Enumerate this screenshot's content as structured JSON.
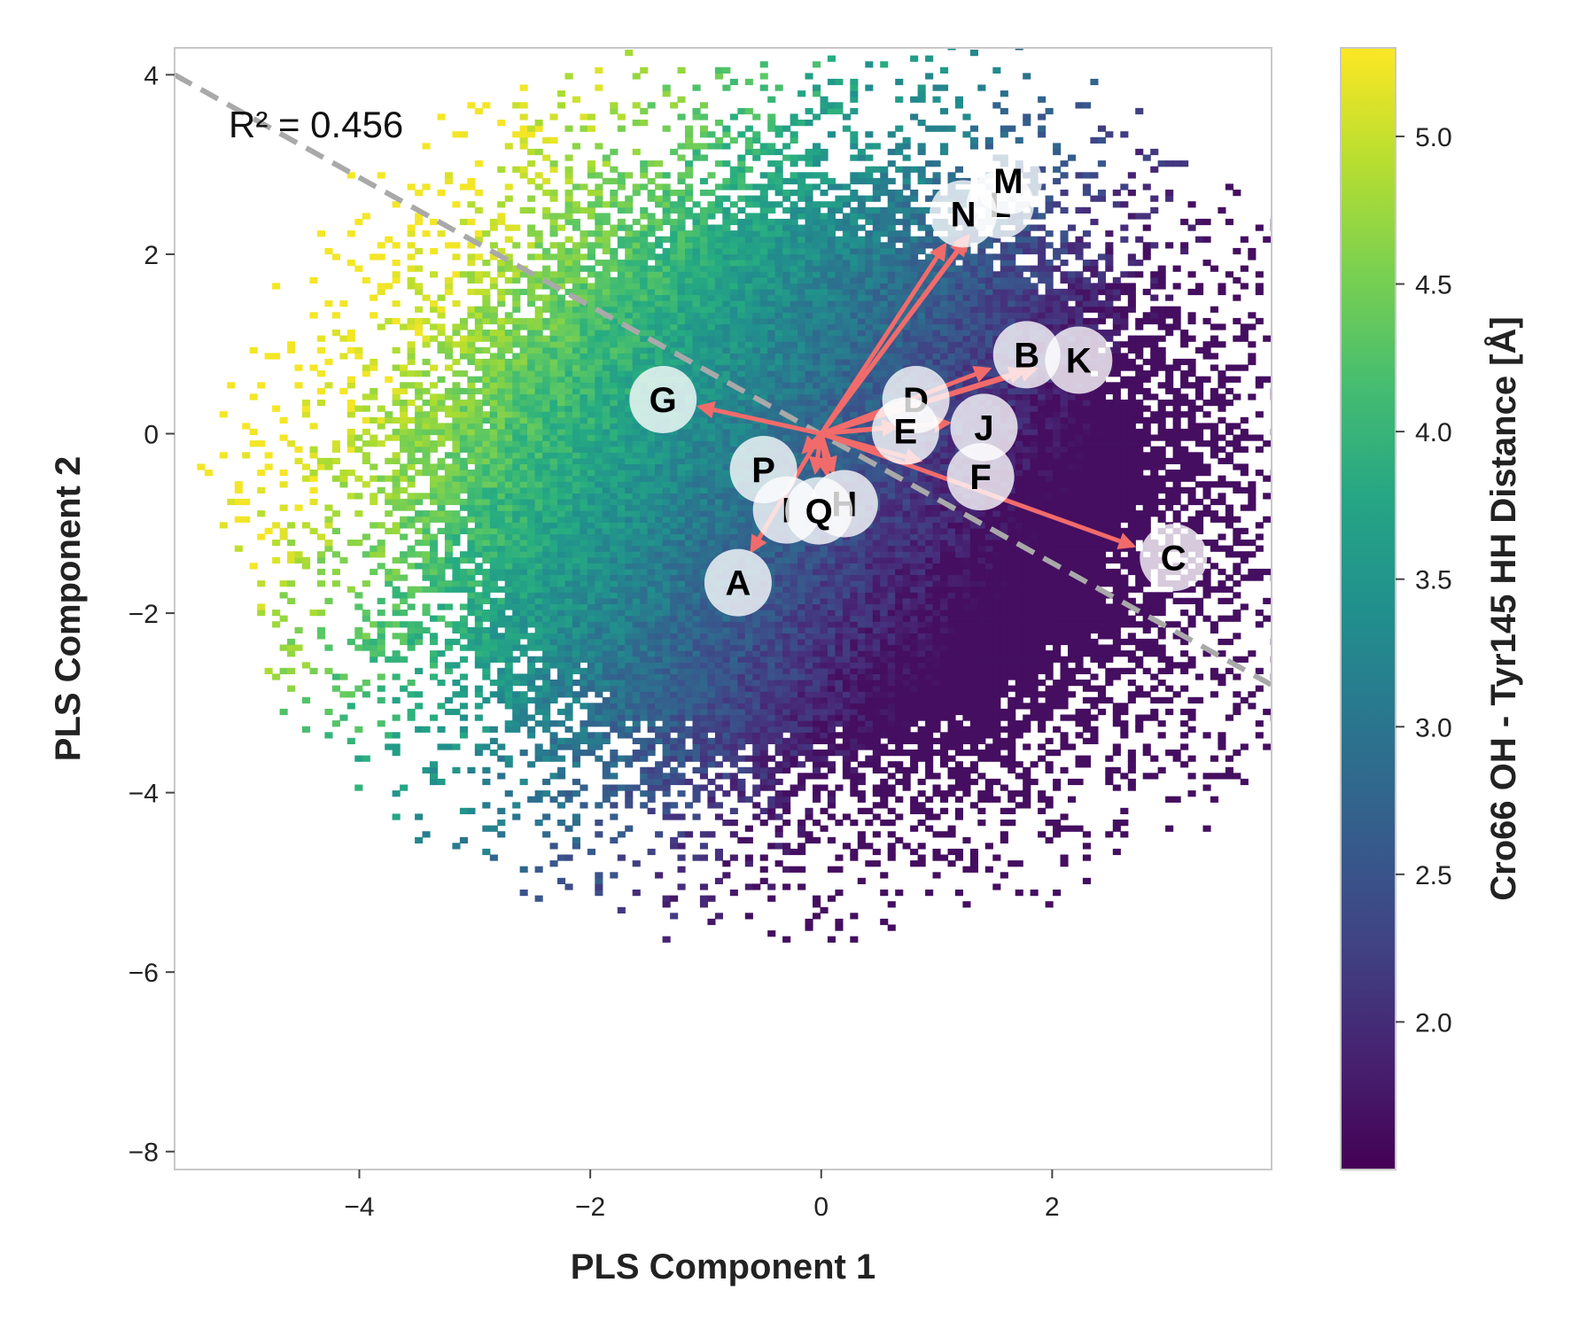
{
  "chart_data": {
    "type": "heatmap",
    "xlabel": "PLS Component 1",
    "ylabel": "PLS Component 2",
    "xlim": [
      -5.6,
      3.9
    ],
    "ylim": [
      -8.2,
      4.3
    ],
    "x_ticks": [
      -4,
      -2,
      0,
      2
    ],
    "y_ticks": [
      4,
      2,
      0,
      -2,
      -4,
      -6,
      -8
    ],
    "grid": false,
    "annotation": "R² = 0.456",
    "colorbar": {
      "label": "Cro66 OH - Tyr145 HH Distance [Å]",
      "range": [
        1.5,
        5.3
      ],
      "ticks": [
        2.0,
        2.5,
        3.0,
        3.5,
        4.0,
        4.5,
        5.0
      ],
      "colormap": "viridis"
    },
    "regression_line": {
      "x": [
        -5.6,
        3.9
      ],
      "y": [
        4.0,
        -2.8
      ],
      "color": "#a9a9a9",
      "style": "dashed"
    },
    "density_cloud": {
      "center": [
        -0.2,
        -0.6
      ],
      "spread": [
        1.55,
        1.55
      ],
      "color_model": "distance increases toward upper-left (low PLS1, high PLS2)"
    },
    "arrow_color": "#f26b6b",
    "loadings": [
      {
        "label": "A",
        "arrow_end": [
          -0.6,
          -1.3
        ],
        "label_pos": [
          -0.72,
          -1.66
        ]
      },
      {
        "label": "B",
        "arrow_end": [
          1.85,
          0.72
        ],
        "label_pos": [
          1.78,
          0.88
        ]
      },
      {
        "label": "C",
        "arrow_end": [
          2.7,
          -1.25
        ],
        "label_pos": [
          3.05,
          -1.38
        ]
      },
      {
        "label": "D",
        "arrow_end": [
          1.45,
          0.72
        ],
        "label_pos": [
          0.82,
          0.38
        ]
      },
      {
        "label": "E",
        "arrow_end": [
          0.65,
          0.08
        ],
        "label_pos": [
          0.73,
          0.03
        ]
      },
      {
        "label": "F",
        "arrow_end": [
          0.85,
          -0.3
        ],
        "label_pos": [
          1.38,
          -0.48
        ]
      },
      {
        "label": "G",
        "arrow_end": [
          -1.05,
          0.3
        ],
        "label_pos": [
          -1.37,
          0.38
        ]
      },
      {
        "label": "H",
        "arrow_end": [
          0.1,
          -0.42
        ],
        "label_pos": [
          0.2,
          -0.78
        ]
      },
      {
        "label": "I",
        "arrow_end": [
          -0.05,
          -0.42
        ],
        "label_pos": [
          -0.3,
          -0.85
        ]
      },
      {
        "label": "J",
        "arrow_end": [
          1.1,
          0.12
        ],
        "label_pos": [
          1.41,
          0.07
        ]
      },
      {
        "label": "K",
        "arrow_end": [
          1.75,
          0.7
        ],
        "label_pos": [
          2.23,
          0.82
        ]
      },
      {
        "label": "L",
        "arrow_end": [
          1.25,
          2.15
        ],
        "label_pos": [
          1.55,
          2.55
        ]
      },
      {
        "label": "M",
        "arrow_end": [
          1.27,
          2.2
        ],
        "label_pos": [
          1.62,
          2.82
        ]
      },
      {
        "label": "N",
        "arrow_end": [
          1.07,
          2.1
        ],
        "label_pos": [
          1.23,
          2.45
        ]
      },
      {
        "label": "P",
        "arrow_end": [
          -0.15,
          -0.2
        ],
        "label_pos": [
          -0.5,
          -0.4
        ]
      },
      {
        "label": "Q",
        "arrow_end": [
          0.05,
          -0.45
        ],
        "label_pos": [
          -0.02,
          -0.86
        ]
      }
    ]
  }
}
